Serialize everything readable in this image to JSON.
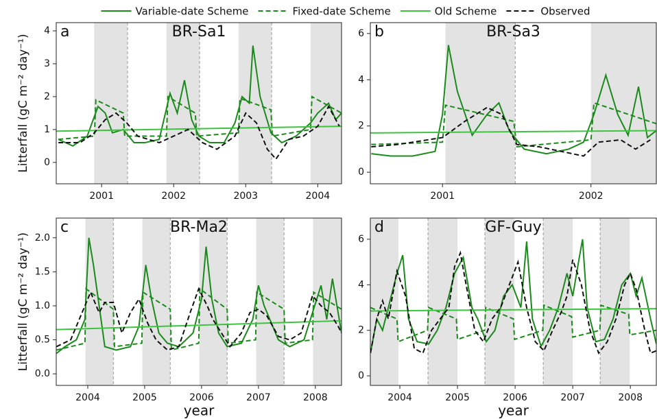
{
  "chart_data": [
    {
      "type": "line",
      "panel": "a",
      "title": "BR-Sa1",
      "y_label": "Litterfall (gC m⁻² day⁻¹)",
      "xlim": [
        2000.37,
        2004.33
      ],
      "xticks": [
        2001,
        2002,
        2003,
        2004
      ],
      "ylim": [
        -0.65,
        4.25
      ],
      "yticks": [
        0,
        1,
        2,
        3,
        4
      ],
      "shade": [
        [
          2000.895,
          2001.36
        ],
        [
          2001.9,
          2002.36
        ],
        [
          2002.9,
          2003.36
        ],
        [
          2003.9,
          2004.33
        ]
      ],
      "vlines": [
        2001.36,
        2002.36,
        2003.36
      ],
      "series": [
        {
          "name": "Variable-date Scheme",
          "color": "#1a8a1a",
          "dashed": false,
          "x": [
            2000.4,
            2000.6,
            2000.8,
            2000.95,
            2001.05,
            2001.15,
            2001.3,
            2001.45,
            2001.6,
            2001.8,
            2001.95,
            2002.05,
            2002.15,
            2002.25,
            2002.35,
            2002.5,
            2002.7,
            2002.85,
            2002.95,
            2003.05,
            2003.1,
            2003.2,
            2003.35,
            2003.5,
            2003.7,
            2003.9,
            2004.0,
            2004.15,
            2004.25,
            2004.33
          ],
          "values": [
            0.7,
            0.5,
            0.8,
            1.7,
            1.5,
            0.9,
            1.0,
            0.6,
            0.6,
            0.7,
            2.1,
            1.5,
            2.5,
            1.3,
            0.8,
            0.6,
            0.6,
            1.2,
            2.0,
            1.8,
            3.55,
            2.0,
            0.9,
            0.6,
            0.8,
            1.2,
            1.5,
            1.8,
            1.3,
            1.5
          ]
        },
        {
          "name": "Fixed-date Scheme",
          "color": "#1a8a1a",
          "dashed": true,
          "x": [
            2000.4,
            2000.9,
            2000.92,
            2001.3,
            2001.32,
            2001.9,
            2001.92,
            2002.3,
            2002.32,
            2002.9,
            2002.92,
            2003.35,
            2003.37,
            2003.9,
            2003.92,
            2004.33
          ],
          "values": [
            0.7,
            0.8,
            1.9,
            1.5,
            0.8,
            0.8,
            2.0,
            1.5,
            0.8,
            0.9,
            1.95,
            1.6,
            0.8,
            1.0,
            2.0,
            1.5
          ]
        },
        {
          "name": "Old Scheme",
          "color": "#3cc43c",
          "dashed": false,
          "x": [
            2000.37,
            2004.33
          ],
          "values": [
            0.95,
            1.1
          ]
        },
        {
          "name": "Observed",
          "color": "#111111",
          "dashed": true,
          "x": [
            2000.4,
            2000.7,
            2000.9,
            2001.05,
            2001.2,
            2001.35,
            2001.5,
            2001.8,
            2002.0,
            2002.2,
            2002.4,
            2002.6,
            2002.85,
            2003.0,
            2003.15,
            2003.3,
            2003.42,
            2003.6,
            2003.8,
            2004.0,
            2004.15,
            2004.3
          ],
          "values": [
            0.6,
            0.6,
            0.9,
            1.3,
            1.5,
            1.2,
            0.8,
            0.6,
            0.8,
            1.0,
            0.6,
            0.4,
            0.8,
            1.5,
            1.2,
            0.4,
            0.1,
            0.7,
            0.8,
            1.1,
            1.7,
            1.1
          ]
        }
      ]
    },
    {
      "type": "line",
      "panel": "b",
      "title": "BR-Sa3",
      "xlim": [
        2000.514,
        2002.44
      ],
      "xticks": [
        2001,
        2002
      ],
      "ylim": [
        -0.5,
        6.47
      ],
      "yticks": [
        0,
        2,
        4,
        6
      ],
      "shade": [
        [
          2001.02,
          2001.49
        ],
        [
          2002.0,
          2002.44
        ]
      ],
      "vlines": [
        2001.49
      ],
      "series": [
        {
          "name": "Variable-date Scheme",
          "color": "#1a8a1a",
          "dashed": false,
          "x": [
            2000.52,
            2000.65,
            2000.8,
            2000.95,
            2001.0,
            2001.04,
            2001.1,
            2001.2,
            2001.3,
            2001.38,
            2001.45,
            2001.55,
            2001.7,
            2001.85,
            2001.95,
            2002.02,
            2002.1,
            2002.18,
            2002.25,
            2002.32,
            2002.38,
            2002.44
          ],
          "values": [
            0.8,
            0.7,
            0.7,
            0.9,
            2.5,
            5.5,
            3.5,
            1.6,
            2.5,
            3.0,
            1.8,
            1.0,
            0.8,
            1.0,
            1.3,
            2.5,
            4.2,
            2.5,
            1.6,
            3.7,
            1.5,
            1.8
          ]
        },
        {
          "name": "Fixed-date Scheme",
          "color": "#1a8a1a",
          "dashed": true,
          "x": [
            2000.52,
            2001.0,
            2001.02,
            2001.48,
            2001.5,
            2002.0,
            2002.02,
            2002.44
          ],
          "values": [
            1.2,
            1.3,
            2.9,
            2.2,
            1.1,
            1.4,
            3.0,
            2.1
          ]
        },
        {
          "name": "Old Scheme",
          "color": "#3cc43c",
          "dashed": false,
          "x": [
            2000.514,
            2002.44
          ],
          "values": [
            1.7,
            1.8
          ]
        },
        {
          "name": "Observed",
          "color": "#111111",
          "dashed": true,
          "x": [
            2000.52,
            2000.7,
            2000.9,
            2001.0,
            2001.15,
            2001.3,
            2001.4,
            2001.5,
            2001.65,
            2001.8,
            2001.95,
            2002.05,
            2002.2,
            2002.3,
            2002.4
          ],
          "values": [
            1.1,
            1.2,
            1.4,
            1.5,
            2.2,
            2.8,
            2.5,
            1.2,
            1.1,
            0.9,
            0.7,
            1.3,
            1.4,
            1.0,
            1.4
          ]
        }
      ]
    },
    {
      "type": "line",
      "panel": "c",
      "title": "BR-Ma2",
      "y_label": "Litterfall (gC m⁻² day⁻¹)",
      "x_label": "year",
      "xlim": [
        2003.446,
        2008.46
      ],
      "xticks": [
        2004,
        2005,
        2006,
        2007,
        2008
      ],
      "ylim": [
        -0.17,
        2.29
      ],
      "yticks": [
        {
          "value": 0,
          "label": "0.0"
        },
        0.5,
        {
          "value": 1,
          "label": "1.0"
        },
        1.5,
        {
          "value": 2,
          "label": "2.0"
        }
      ],
      "shade": [
        [
          2003.96,
          2004.45
        ],
        [
          2004.96,
          2005.45
        ],
        [
          2005.96,
          2006.45
        ],
        [
          2006.96,
          2007.45
        ],
        [
          2007.96,
          2008.46
        ]
      ],
      "vlines": [
        2004.45,
        2005.45,
        2006.45,
        2007.45
      ],
      "series": [
        {
          "name": "Variable-date Scheme",
          "color": "#1a8a1a",
          "dashed": false,
          "x": [
            2003.45,
            2003.6,
            2003.8,
            2003.95,
            2004.02,
            2004.1,
            2004.2,
            2004.3,
            2004.5,
            2004.75,
            2004.9,
            2005.02,
            2005.12,
            2005.25,
            2005.4,
            2005.6,
            2005.85,
            2006.0,
            2006.08,
            2006.18,
            2006.3,
            2006.45,
            2006.7,
            2006.9,
            2007.0,
            2007.1,
            2007.2,
            2007.35,
            2007.55,
            2007.8,
            2007.95,
            2008.1,
            2008.2,
            2008.3,
            2008.4,
            2008.46
          ],
          "values": [
            0.3,
            0.4,
            0.5,
            0.8,
            2.0,
            1.6,
            1.0,
            0.4,
            0.35,
            0.4,
            0.7,
            1.6,
            1.1,
            0.6,
            0.45,
            0.4,
            0.6,
            1.1,
            1.87,
            1.1,
            0.6,
            0.4,
            0.45,
            0.8,
            1.3,
            1.0,
            0.8,
            0.5,
            0.4,
            0.5,
            0.9,
            1.3,
            0.8,
            1.4,
            0.9,
            0.6
          ]
        },
        {
          "name": "Fixed-date Scheme",
          "color": "#1a8a1a",
          "dashed": true,
          "x": [
            2003.45,
            2003.95,
            2003.97,
            2004.45,
            2004.47,
            2004.95,
            2004.97,
            2005.45,
            2005.47,
            2005.95,
            2005.97,
            2006.45,
            2006.47,
            2006.95,
            2006.97,
            2007.45,
            2007.47,
            2007.95,
            2007.97,
            2008.46
          ],
          "values": [
            0.35,
            0.45,
            1.25,
            0.95,
            0.4,
            0.45,
            1.2,
            0.95,
            0.35,
            0.45,
            1.25,
            0.95,
            0.45,
            0.5,
            1.2,
            0.95,
            0.45,
            0.5,
            1.2,
            0.95
          ]
        },
        {
          "name": "Old Scheme",
          "color": "#3cc43c",
          "dashed": false,
          "x": [
            2003.446,
            2008.46
          ],
          "values": [
            0.65,
            0.78
          ]
        },
        {
          "name": "Observed",
          "color": "#111111",
          "dashed": true,
          "x": [
            2003.45,
            2003.7,
            2003.9,
            2004.05,
            2004.2,
            2004.3,
            2004.45,
            2004.6,
            2004.75,
            2004.9,
            2005.05,
            2005.2,
            2005.4,
            2005.6,
            2005.8,
            2005.95,
            2006.1,
            2006.2,
            2006.35,
            2006.5,
            2006.7,
            2006.85,
            2007.0,
            2007.15,
            2007.35,
            2007.55,
            2007.75,
            2007.95,
            2008.1,
            2008.25,
            2008.4,
            2008.46
          ],
          "values": [
            0.4,
            0.5,
            0.9,
            1.2,
            0.9,
            1.05,
            1.05,
            0.6,
            0.9,
            1.1,
            0.75,
            0.5,
            0.35,
            0.4,
            0.9,
            1.25,
            1.0,
            0.8,
            0.6,
            0.4,
            0.6,
            0.9,
            0.95,
            0.85,
            0.55,
            0.5,
            0.6,
            1.15,
            1.0,
            0.9,
            0.7,
            0.6
          ]
        }
      ]
    },
    {
      "type": "line",
      "panel": "d",
      "title": "GF-Guy",
      "x_label": "year",
      "xlim": [
        2003.488,
        2008.45
      ],
      "xticks": [
        2004,
        2005,
        2006,
        2007,
        2008
      ],
      "ylim": [
        -0.42,
        6.93
      ],
      "yticks": [
        0,
        2,
        4,
        6
      ],
      "shade": [
        [
          2003.488,
          2003.976
        ],
        [
          2004.488,
          2005.0
        ],
        [
          2005.476,
          2005.988
        ],
        [
          2006.488,
          2007.0
        ],
        [
          2007.476,
          2007.988
        ]
      ],
      "vlines": [
        2004.488,
        2005.476,
        2006.488,
        2007.476
      ],
      "series": [
        {
          "name": "Variable-date Scheme",
          "color": "#1a8a1a",
          "dashed": false,
          "x": [
            2003.49,
            2003.6,
            2003.7,
            2003.8,
            2003.95,
            2004.05,
            2004.15,
            2004.3,
            2004.5,
            2004.65,
            2004.8,
            2004.95,
            2005.1,
            2005.25,
            2005.35,
            2005.5,
            2005.65,
            2005.8,
            2005.95,
            2006.1,
            2006.2,
            2006.3,
            2006.45,
            2006.6,
            2006.75,
            2006.9,
            2007.0,
            2007.1,
            2007.17,
            2007.25,
            2007.4,
            2007.55,
            2007.7,
            2007.85,
            2008.0,
            2008.1,
            2008.2,
            2008.35,
            2008.45
          ],
          "values": [
            1.0,
            2.5,
            2.0,
            3.0,
            4.5,
            5.3,
            2.5,
            1.5,
            1.4,
            2.0,
            3.0,
            4.5,
            5.2,
            3.0,
            2.5,
            1.5,
            2.0,
            3.5,
            4.0,
            3.0,
            5.9,
            2.5,
            1.3,
            2.0,
            3.0,
            4.5,
            3.5,
            5.0,
            6.0,
            3.0,
            1.5,
            1.6,
            2.5,
            4.0,
            4.5,
            3.5,
            4.3,
            2.5,
            1.4
          ]
        },
        {
          "name": "Fixed-date Scheme",
          "color": "#1a8a1a",
          "dashed": true,
          "x": [
            2003.49,
            2003.95,
            2003.97,
            2004.48,
            2004.5,
            2004.98,
            2005.0,
            2005.47,
            2005.49,
            2005.97,
            2005.99,
            2006.48,
            2006.5,
            2006.98,
            2007.0,
            2007.47,
            2007.49,
            2007.97,
            2007.99,
            2008.45
          ],
          "values": [
            3.0,
            2.5,
            1.5,
            2.0,
            3.0,
            2.5,
            1.6,
            2.0,
            3.0,
            2.5,
            1.6,
            2.0,
            3.1,
            2.6,
            1.7,
            2.0,
            3.1,
            2.7,
            1.8,
            2.0
          ]
        },
        {
          "name": "Old Scheme",
          "color": "#3cc43c",
          "dashed": false,
          "x": [
            2003.488,
            2008.45
          ],
          "values": [
            2.85,
            2.95
          ]
        },
        {
          "name": "Observed",
          "color": "#111111",
          "dashed": true,
          "x": [
            2003.49,
            2003.6,
            2003.7,
            2003.8,
            2003.95,
            2004.1,
            2004.25,
            2004.4,
            2004.55,
            2004.7,
            2004.85,
            2004.95,
            2005.05,
            2005.15,
            2005.3,
            2005.45,
            2005.6,
            2005.75,
            2005.9,
            2006.05,
            2006.2,
            2006.35,
            2006.5,
            2006.65,
            2006.8,
            2006.9,
            2007.0,
            2007.15,
            2007.3,
            2007.45,
            2007.6,
            2007.75,
            2007.9,
            2008.0,
            2008.1,
            2008.25,
            2008.35,
            2008.45
          ],
          "values": [
            1.0,
            2.5,
            3.3,
            2.5,
            4.6,
            3.5,
            1.2,
            1.0,
            2.0,
            2.5,
            3.0,
            4.8,
            5.4,
            4.0,
            2.0,
            1.5,
            2.5,
            3.0,
            4.0,
            5.0,
            3.0,
            1.5,
            1.1,
            2.0,
            2.8,
            3.5,
            5.1,
            4.0,
            2.0,
            1.0,
            1.5,
            2.5,
            4.0,
            4.5,
            3.8,
            2.0,
            1.0,
            1.1
          ]
        }
      ]
    }
  ]
}
